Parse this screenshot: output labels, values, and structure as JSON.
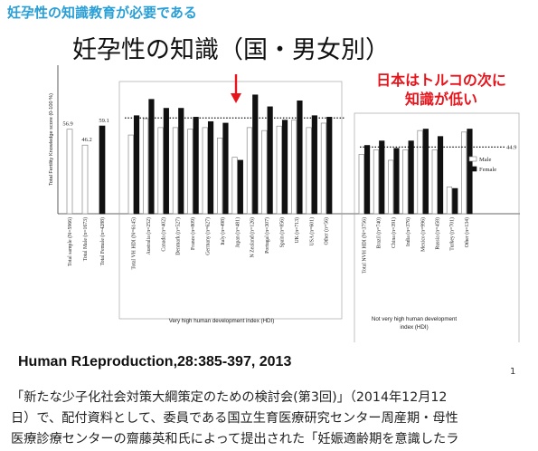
{
  "header": {
    "text": "妊孕性の知識教育が必要である"
  },
  "slide_title": "妊孕性の知識（国・男女別）",
  "callout": {
    "line1": "日本はトルコの次に",
    "line2": "知識が低い"
  },
  "citation": "Human R1eproduction,28:385-397, 2013",
  "page_number": "1",
  "caption": [
    "「新たな少子化社会対策大綱策定のための検討会(第3回)」（2014年12月12",
    "日）で、配付資料として、委員である国立生育医療研究センター周産期・母性",
    "医療診療センターの齋藤英和氏によって提出された「妊娠適齢期を意識したラ"
  ],
  "colors": {
    "male": "#ffffff",
    "female": "#111111",
    "header": "#2a9fd6",
    "callout": "#e8141b"
  },
  "chart_data": {
    "type": "bar",
    "ylabel": "Total Fertility Knowledge score (0-100 %)",
    "ylim": [
      0,
      100
    ],
    "legend": {
      "position": "right",
      "entries": [
        "Male",
        "Female"
      ]
    },
    "totals": {
      "categories": [
        "Total sample (N=5966)",
        "Total Male (n=1673)",
        "Total Female (n=4288)"
      ],
      "values": [
        56.9,
        46.2,
        59.1
      ],
      "labels": [
        "56.9",
        "46.2",
        "59.1"
      ],
      "styles": [
        "male",
        "male",
        "female"
      ]
    },
    "groups": [
      {
        "name": "Very high human development index (HDI)",
        "reference_line": 64.5,
        "categories": [
          "Total VH HDI (N=6145)",
          "Australia (n=252)",
          "Canada (n=402)",
          "Denmark (n=527)",
          "France (n=809)",
          "Germany (n=627)",
          "Italy (n=498)",
          "Japan (n=481)",
          "N Zealand (n=126)",
          "Portugal (n=307)",
          "Spain (n=856)",
          "UK (n=713)",
          "USA (n=601)",
          "Other (n=56)"
        ],
        "series": [
          {
            "name": "Male",
            "values": [
              53,
              64,
              58,
              58,
              57,
              58,
              51,
              38,
              58,
              56,
              59,
              63,
              58,
              61
            ]
          },
          {
            "name": "Female",
            "values": [
              66,
              77,
              71,
              71,
              65,
              62,
              61,
              36,
              80,
              72,
              63,
              76,
              66,
              65
            ]
          }
        ]
      },
      {
        "name": "Not very high human development index (HDI)",
        "reference_line": 44.9,
        "reference_label": "44.9",
        "categories": [
          "Total NVH HDI (N=3756)",
          "Brazil (n=740)",
          "China (n=391)",
          "India (n=376)",
          "Mexico (n=996)",
          "Russia (n=458)",
          "Turkey (n=701)",
          "Other (n=134)"
        ],
        "series": [
          {
            "name": "Male",
            "values": [
              40,
              43,
              36,
              43,
              56,
              43,
              18,
              55
            ]
          },
          {
            "name": "Female",
            "values": [
              46,
              49,
              44,
              49,
              57,
              52,
              17,
              57
            ]
          }
        ]
      }
    ]
  }
}
